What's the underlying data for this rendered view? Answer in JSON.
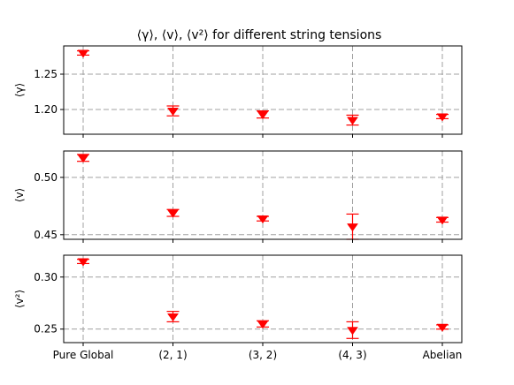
{
  "figure": {
    "title": "⟨γ⟩, ⟨v⟩, ⟨v²⟩ for different string tensions"
  },
  "style": {
    "marker_color": "#ff0000",
    "grid_color": "#a0a0a0",
    "marker_shape": "triangle-down",
    "grid": "dashed"
  },
  "chart_data": [
    {
      "type": "scatter",
      "ylabel": "⟨γ⟩",
      "categories": [
        "Pure Global",
        "(2, 1)",
        "(3, 2)",
        "(4, 3)",
        "Abelian"
      ],
      "ylim": [
        1.165,
        1.29
      ],
      "yticks": [
        1.2,
        1.25
      ],
      "ytick_labels": [
        "1.20",
        "1.25"
      ],
      "values": [
        1.28,
        1.198,
        1.193,
        1.185,
        1.19
      ],
      "errors": [
        0.003,
        0.007,
        0.005,
        0.007,
        0.003
      ],
      "grid": true,
      "show_xtick_labels": false
    },
    {
      "type": "scatter",
      "ylabel": "⟨v⟩",
      "categories": [
        "Pure Global",
        "(2, 1)",
        "(3, 2)",
        "(4, 3)",
        "Abelian"
      ],
      "ylim": [
        0.446,
        0.523
      ],
      "yticks": [
        0.45,
        0.5
      ],
      "ytick_labels": [
        "0.45",
        "0.50"
      ],
      "values": [
        0.517,
        0.469,
        0.464,
        0.457,
        0.463
      ],
      "errors": [
        0.003,
        0.003,
        0.002,
        0.011,
        0.002
      ],
      "grid": true,
      "show_xtick_labels": false
    },
    {
      "type": "scatter",
      "ylabel": "⟨v²⟩",
      "categories": [
        "Pure Global",
        "(2, 1)",
        "(3, 2)",
        "(4, 3)",
        "Abelian"
      ],
      "ylim": [
        0.237,
        0.321
      ],
      "yticks": [
        0.25,
        0.3
      ],
      "ytick_labels": [
        "0.25",
        "0.30"
      ],
      "values": [
        0.315,
        0.262,
        0.255,
        0.249,
        0.252
      ],
      "errors": [
        0.002,
        0.005,
        0.003,
        0.008,
        0.002
      ],
      "grid": true,
      "show_xtick_labels": true
    }
  ]
}
